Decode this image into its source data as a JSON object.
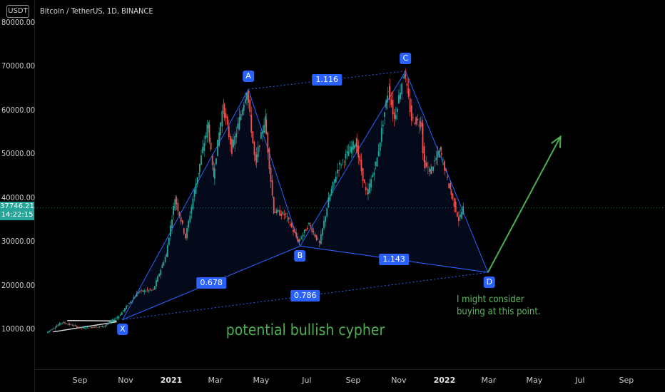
{
  "header": {
    "currency_badge": "USDT",
    "title": "Bitcoin / TetherUS, 1D, BINANCE"
  },
  "price_tag": {
    "price": "37746.21",
    "countdown": "14:22:15",
    "color": "#26a69a"
  },
  "annotations": {
    "main_label": "potential bullish cypher",
    "note_line1": "I might consider",
    "note_line2": "buying at this point."
  },
  "colors": {
    "pattern": "#2962ff",
    "label_bg": "#2962ff",
    "annotation": "#4caf50",
    "up_candle": "#26a69a",
    "down_candle": "#ef5350"
  },
  "chart_data": {
    "type": "candlestick",
    "symbol": "Bitcoin / TetherUS",
    "interval": "1D",
    "exchange": "BINANCE",
    "y_ticks": [
      {
        "label": "80000.00",
        "value": 80000
      },
      {
        "label": "70000.00",
        "value": 70000
      },
      {
        "label": "60000.00",
        "value": 60000
      },
      {
        "label": "50000.00",
        "value": 50000
      },
      {
        "label": "40000.00",
        "value": 40000
      },
      {
        "label": "30000.00",
        "value": 30000
      },
      {
        "label": "20000.00",
        "value": 20000
      },
      {
        "label": "10000.00",
        "value": 10000
      }
    ],
    "x_ticks": [
      {
        "label": "Sep",
        "date": "2020-09-01",
        "bold": false
      },
      {
        "label": "Nov",
        "date": "2020-11-01",
        "bold": false
      },
      {
        "label": "2021",
        "date": "2021-01-01",
        "bold": true
      },
      {
        "label": "Mar",
        "date": "2021-03-01",
        "bold": false
      },
      {
        "label": "May",
        "date": "2021-05-01",
        "bold": false
      },
      {
        "label": "Jul",
        "date": "2021-07-01",
        "bold": false
      },
      {
        "label": "Sep",
        "date": "2021-09-01",
        "bold": false
      },
      {
        "label": "Nov",
        "date": "2021-11-01",
        "bold": false
      },
      {
        "label": "2022",
        "date": "2022-01-01",
        "bold": true
      },
      {
        "label": "Mar",
        "date": "2022-03-01",
        "bold": false
      },
      {
        "label": "May",
        "date": "2022-05-01",
        "bold": false
      },
      {
        "label": "Jul",
        "date": "2022-07-01",
        "bold": false
      },
      {
        "label": "Sep",
        "date": "2022-09-01",
        "bold": false
      }
    ],
    "last_price": 37746.21,
    "price_path": [
      [
        "2020-07-20",
        9200
      ],
      [
        "2020-08-10",
        11600
      ],
      [
        "2020-09-05",
        10300
      ],
      [
        "2020-10-05",
        10700
      ],
      [
        "2020-10-25",
        13000
      ],
      [
        "2020-11-20",
        18600
      ],
      [
        "2020-12-10",
        19000
      ],
      [
        "2020-12-27",
        27000
      ],
      [
        "2021-01-08",
        40000
      ],
      [
        "2021-01-22",
        31000
      ],
      [
        "2021-02-08",
        46000
      ],
      [
        "2021-02-21",
        57000
      ],
      [
        "2021-02-28",
        45000
      ],
      [
        "2021-03-13",
        61000
      ],
      [
        "2021-03-25",
        51000
      ],
      [
        "2021-04-14",
        64800
      ],
      [
        "2021-04-25",
        48000
      ],
      [
        "2021-05-08",
        58000
      ],
      [
        "2021-05-20",
        37000
      ],
      [
        "2021-06-05",
        36000
      ],
      [
        "2021-06-22",
        30000
      ],
      [
        "2021-07-06",
        34000
      ],
      [
        "2021-07-20",
        29500
      ],
      [
        "2021-08-01",
        39500
      ],
      [
        "2021-08-14",
        47000
      ],
      [
        "2021-09-06",
        52800
      ],
      [
        "2021-09-21",
        40500
      ],
      [
        "2021-10-05",
        49000
      ],
      [
        "2021-10-20",
        65000
      ],
      [
        "2021-10-28",
        58000
      ],
      [
        "2021-11-10",
        69000
      ],
      [
        "2021-11-20",
        58000
      ],
      [
        "2021-12-03",
        57000
      ],
      [
        "2021-12-06",
        48000
      ],
      [
        "2021-12-15",
        46000
      ],
      [
        "2021-12-28",
        51000
      ],
      [
        "2022-01-10",
        42000
      ],
      [
        "2022-01-22",
        35000
      ],
      [
        "2022-01-28",
        37746
      ]
    ],
    "pattern": {
      "name": "bullish cypher",
      "points": [
        {
          "label": "X",
          "date": "2020-10-28",
          "price": 12200
        },
        {
          "label": "A",
          "date": "2021-04-14",
          "price": 64800
        },
        {
          "label": "B",
          "date": "2021-06-22",
          "price": 29000
        },
        {
          "label": "C",
          "date": "2021-11-10",
          "price": 69000
        },
        {
          "label": "D",
          "date": "2022-02-28",
          "price": 23000
        }
      ],
      "ratios": [
        {
          "label": "1.116",
          "between": [
            "A",
            "C"
          ]
        },
        {
          "label": "0.678",
          "between": [
            "X",
            "B"
          ]
        },
        {
          "label": "1.143",
          "between": [
            "B",
            "D"
          ]
        },
        {
          "label": "0.786",
          "between": [
            "X",
            "D"
          ]
        }
      ]
    },
    "consolidation_channel": [
      {
        "date": "2020-07-27",
        "price": 9400
      },
      {
        "date": "2020-10-20",
        "price": 11700
      }
    ],
    "projection_arrow": {
      "from": [
        "2022-02-28",
        23000
      ],
      "to": [
        "2022-06-05",
        54000
      ]
    }
  }
}
